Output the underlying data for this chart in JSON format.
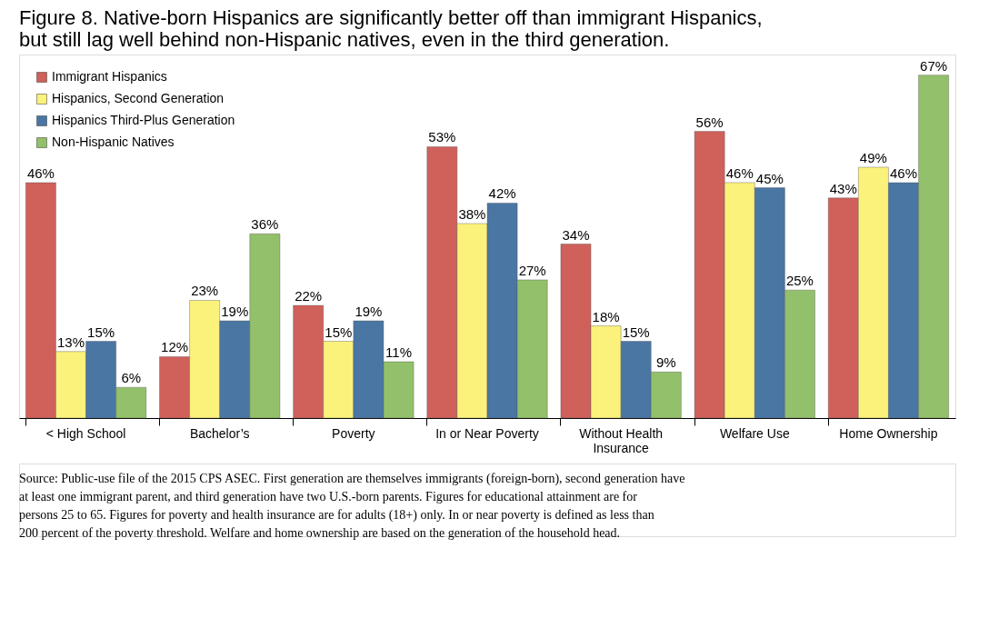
{
  "chart_data": {
    "type": "bar",
    "title": "Figure 8. Native-born Hispanics are significantly better off than immigrant Hispanics, but still lag well behind non-Hispanic natives, even in the third generation.",
    "categories": [
      "< High School",
      "Bachelor’s",
      "Poverty",
      "In or Near Poverty",
      "Without Health Insurance",
      "Welfare Use",
      "Home Ownership"
    ],
    "series": [
      {
        "name": "Immigrant Hispanics",
        "color": "#d0605a",
        "values": [
          46,
          12,
          22,
          53,
          34,
          56,
          43
        ],
        "value_labels": [
          "46%",
          "12%",
          "22%",
          "53%",
          "34%",
          "56%",
          "43%"
        ]
      },
      {
        "name": "Hispanics, Second Generation",
        "color": "#fbf27c",
        "values": [
          13,
          23,
          15,
          38,
          18,
          46,
          49
        ],
        "value_labels": [
          "13%",
          "23%",
          "15%",
          "38%",
          "18%",
          "46%",
          "49%"
        ]
      },
      {
        "name": "Hispanics Third-Plus Generation",
        "color": "#4a76a4",
        "values": [
          15,
          19,
          19,
          42,
          15,
          45,
          46
        ],
        "value_labels": [
          "15%",
          "19%",
          "19%",
          "42%",
          "15%",
          "45%",
          "46%"
        ]
      },
      {
        "name": "Non-Hispanic Natives",
        "color": "#93c06a",
        "values": [
          6,
          36,
          11,
          27,
          9,
          25,
          67
        ],
        "value_labels": [
          "6%",
          "36%",
          "11%",
          "27%",
          "9%",
          "25%",
          "67%"
        ]
      }
    ],
    "legend": "top left",
    "grid": false,
    "annotations": [
      "Source: Public-use file of the 2015 CPS ASEC. First generation are themselves immigrants (foreign-born), second generation have at least one immigrant parent, and third generation have two U.S.-born parents. Figures for educational attainment are for persons 25 to 65. Figures for poverty and health insurance are for adults (18+) only. In or near poverty is defined as less than 200 percent of the poverty threshold. Welfare and home ownership are based on the generation of the household head."
    ]
  }
}
